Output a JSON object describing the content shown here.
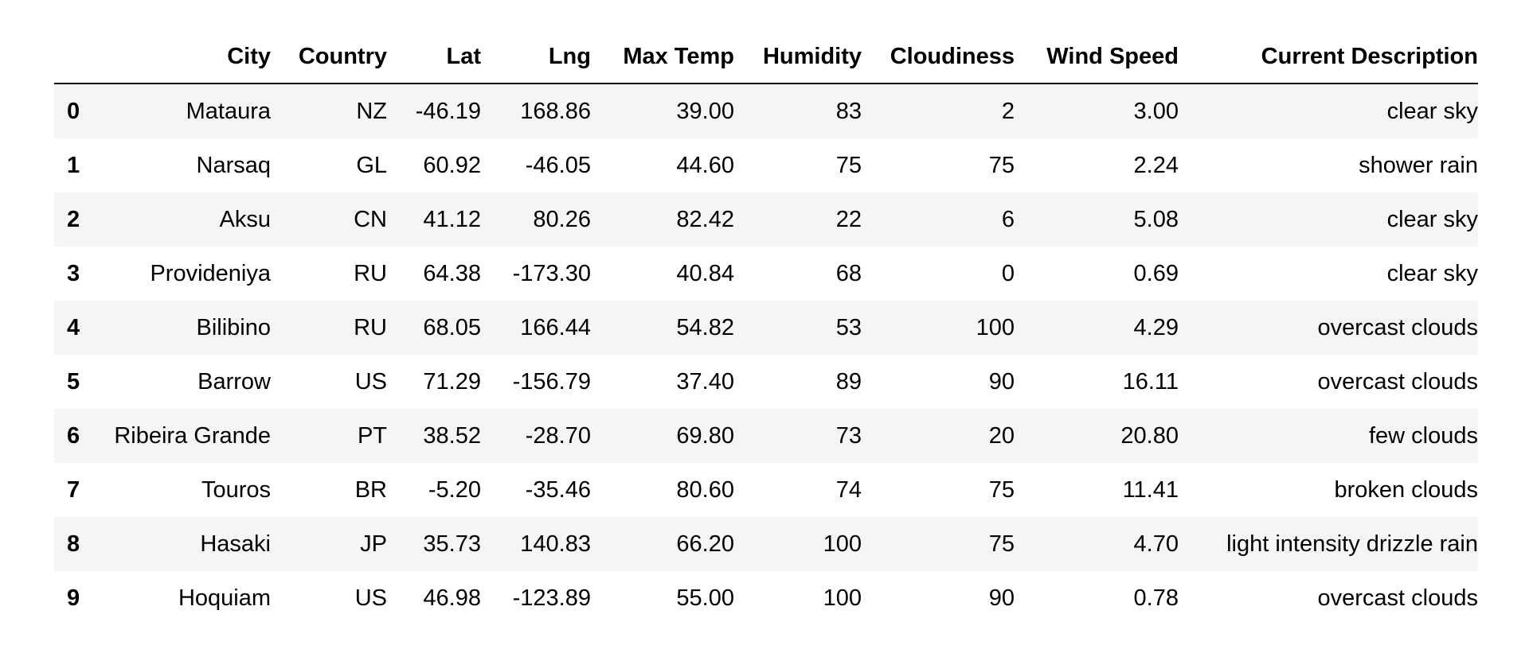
{
  "table": {
    "columns": [
      "",
      "City",
      "Country",
      "Lat",
      "Lng",
      "Max Temp",
      "Humidity",
      "Cloudiness",
      "Wind Speed",
      "Current Description"
    ],
    "rows": [
      {
        "index": "0",
        "cells": [
          "Mataura",
          "NZ",
          "-46.19",
          "168.86",
          "39.00",
          "83",
          "2",
          "3.00",
          "clear sky"
        ]
      },
      {
        "index": "1",
        "cells": [
          "Narsaq",
          "GL",
          "60.92",
          "-46.05",
          "44.60",
          "75",
          "75",
          "2.24",
          "shower rain"
        ]
      },
      {
        "index": "2",
        "cells": [
          "Aksu",
          "CN",
          "41.12",
          "80.26",
          "82.42",
          "22",
          "6",
          "5.08",
          "clear sky"
        ]
      },
      {
        "index": "3",
        "cells": [
          "Provideniya",
          "RU",
          "64.38",
          "-173.30",
          "40.84",
          "68",
          "0",
          "0.69",
          "clear sky"
        ]
      },
      {
        "index": "4",
        "cells": [
          "Bilibino",
          "RU",
          "68.05",
          "166.44",
          "54.82",
          "53",
          "100",
          "4.29",
          "overcast clouds"
        ]
      },
      {
        "index": "5",
        "cells": [
          "Barrow",
          "US",
          "71.29",
          "-156.79",
          "37.40",
          "89",
          "90",
          "16.11",
          "overcast clouds"
        ]
      },
      {
        "index": "6",
        "cells": [
          "Ribeira Grande",
          "PT",
          "38.52",
          "-28.70",
          "69.80",
          "73",
          "20",
          "20.80",
          "few clouds"
        ]
      },
      {
        "index": "7",
        "cells": [
          "Touros",
          "BR",
          "-5.20",
          "-35.46",
          "80.60",
          "74",
          "75",
          "11.41",
          "broken clouds"
        ]
      },
      {
        "index": "8",
        "cells": [
          "Hasaki",
          "JP",
          "35.73",
          "140.83",
          "66.20",
          "100",
          "75",
          "4.70",
          "light intensity drizzle rain"
        ]
      },
      {
        "index": "9",
        "cells": [
          "Hoquiam",
          "US",
          "46.98",
          "-123.89",
          "55.00",
          "100",
          "90",
          "0.78",
          "overcast clouds"
        ]
      }
    ]
  }
}
